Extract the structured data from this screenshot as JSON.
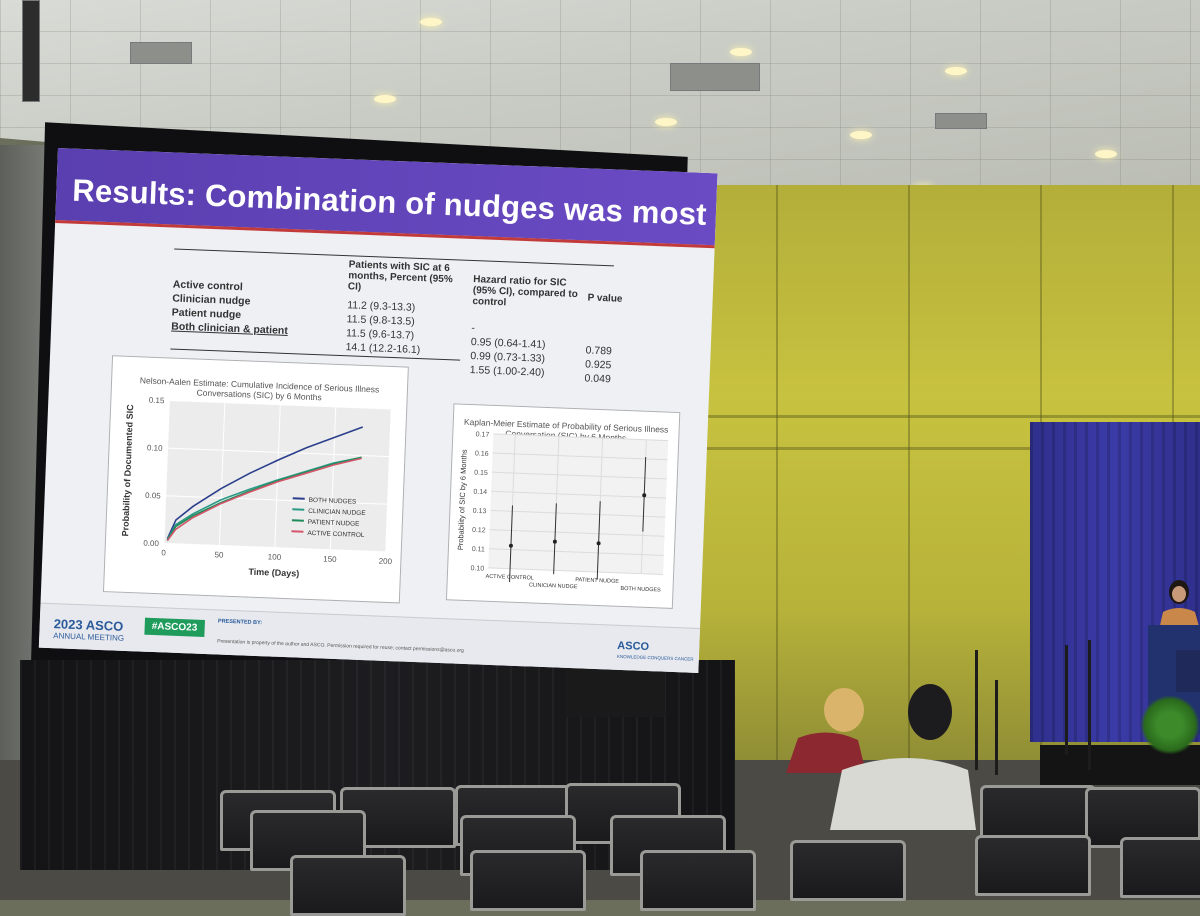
{
  "slide": {
    "title": "Results: Combination of nudges was most effective",
    "table": {
      "headers": {
        "col1": "Patients with SIC at 6 months, Percent (95% CI)",
        "col2": "Hazard ratio for SIC (95% CI), compared to control",
        "col3": "P value"
      },
      "rows": [
        {
          "arm": "Active control",
          "percent": "11.2 (9.3-13.3)",
          "hr": "-",
          "p": ""
        },
        {
          "arm": "Clinician nudge",
          "percent": "11.5 (9.8-13.5)",
          "hr": "0.95 (0.64-1.41)",
          "p": "0.789"
        },
        {
          "arm": "Patient nudge",
          "percent": "11.5 (9.6-13.7)",
          "hr": "0.99 (0.73-1.33)",
          "p": "0.925"
        },
        {
          "arm": "Both clinician & patient",
          "percent": "14.1 (12.2-16.1)",
          "hr": "1.55 (1.00-2.40)",
          "p": "0.049"
        }
      ]
    },
    "footer": {
      "asco_year": "2023 ASCO",
      "asco_meeting": "ANNUAL MEETING",
      "hashtag": "#ASCO23",
      "presented_by": "PRESENTED BY:",
      "disclaimer": "Presentation is property of the author and ASCO. Permission required for reuse; contact permissions@asco.org",
      "asco_right": "ASCO",
      "asco_right_sub": "KNOWLEDGE CONQUERS CANCER"
    }
  },
  "chart_data": [
    {
      "type": "line",
      "title": "Nelson-Aalen Estimate: Cumulative Incidence of Serious Illness Conversations (SIC) by 6 Months",
      "xlabel": "Time (Days)",
      "ylabel": "Probability of Documented SIC",
      "xlim": [
        0,
        200
      ],
      "ylim": [
        0,
        0.15
      ],
      "xticks": [
        "0",
        "50",
        "100",
        "150",
        "200"
      ],
      "yticks": [
        "0.00",
        "0.05",
        "0.10",
        "0.15"
      ],
      "legend_position": "bottom-right",
      "series": [
        {
          "name": "BOTH NUDGES",
          "color": "#2b3f8c",
          "x": [
            3,
            10,
            25,
            50,
            75,
            100,
            125,
            150,
            175
          ],
          "y": [
            0.005,
            0.025,
            0.04,
            0.06,
            0.077,
            0.092,
            0.106,
            0.118,
            0.13
          ]
        },
        {
          "name": "CLINICIAN NUDGE",
          "color": "#2a9a86",
          "x": [
            3,
            10,
            25,
            50,
            75,
            100,
            125,
            150,
            175
          ],
          "y": [
            0.004,
            0.02,
            0.032,
            0.048,
            0.06,
            0.071,
            0.081,
            0.091,
            0.098
          ]
        },
        {
          "name": "PATIENT NUDGE",
          "color": "#1f8a5a",
          "x": [
            3,
            10,
            25,
            50,
            75,
            100,
            125,
            150,
            175
          ],
          "y": [
            0.003,
            0.018,
            0.03,
            0.045,
            0.058,
            0.07,
            0.08,
            0.09,
            0.098
          ]
        },
        {
          "name": "ACTIVE CONTROL",
          "color": "#d3566a",
          "x": [
            3,
            10,
            25,
            50,
            75,
            100,
            125,
            150,
            175
          ],
          "y": [
            0.003,
            0.015,
            0.028,
            0.044,
            0.057,
            0.069,
            0.079,
            0.089,
            0.097
          ]
        }
      ]
    },
    {
      "type": "scatter",
      "title": "Kaplan-Meier Estimate of Probability of Serious Illness Conversation (SIC) by 6 Months",
      "ylabel": "Probability of SIC by 6 Months",
      "ylim": [
        0.1,
        0.17
      ],
      "yticks": [
        "0.10",
        "0.11",
        "0.12",
        "0.13",
        "0.14",
        "0.15",
        "0.16",
        "0.17"
      ],
      "categories": [
        "ACTIVE CONTROL",
        "CLINICIAN NUDGE",
        "PATIENT NUDGE",
        "BOTH NUDGES"
      ],
      "values": [
        0.112,
        0.115,
        0.115,
        0.141
      ],
      "lower": [
        0.093,
        0.098,
        0.096,
        0.122
      ],
      "upper": [
        0.133,
        0.135,
        0.137,
        0.161
      ]
    }
  ]
}
